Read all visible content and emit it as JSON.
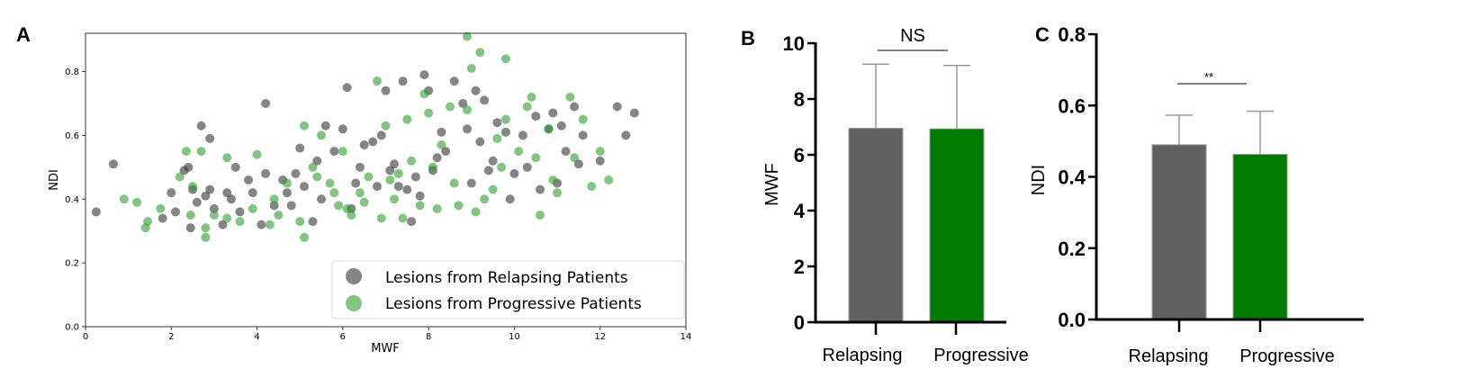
{
  "chart_data": [
    {
      "type": "scatter",
      "panel": "A",
      "xlabel": "MWF",
      "ylabel": "NDI",
      "xlim": [
        0,
        14
      ],
      "ylim": [
        0,
        0.92
      ],
      "xticks": [
        "0",
        "2",
        "4",
        "6",
        "8",
        "10",
        "12",
        "14"
      ],
      "xtick_values": [
        0,
        2,
        4,
        6,
        8,
        10,
        12,
        14
      ],
      "yticks": [
        "0.0",
        "0.2",
        "0.4",
        "0.6",
        "0.8"
      ],
      "ytick_values": [
        0,
        0.2,
        0.4,
        0.6,
        0.8
      ],
      "legend_position": "bottom-right",
      "series": [
        {
          "name": "Lesions from Relapsing Patients",
          "color": "#333333",
          "points": [
            [
              0.25,
              0.36
            ],
            [
              0.65,
              0.51
            ],
            [
              1.8,
              0.34
            ],
            [
              2.0,
              0.42
            ],
            [
              2.1,
              0.36
            ],
            [
              2.3,
              0.49
            ],
            [
              2.4,
              0.5
            ],
            [
              2.45,
              0.31
            ],
            [
              2.5,
              0.43
            ],
            [
              2.6,
              0.39
            ],
            [
              2.7,
              0.63
            ],
            [
              2.8,
              0.41
            ],
            [
              2.9,
              0.59
            ],
            [
              2.9,
              0.43
            ],
            [
              3.0,
              0.37
            ],
            [
              3.2,
              0.32
            ],
            [
              3.3,
              0.42
            ],
            [
              3.5,
              0.5
            ],
            [
              3.6,
              0.36
            ],
            [
              3.8,
              0.46
            ],
            [
              3.9,
              0.42
            ],
            [
              4.1,
              0.32
            ],
            [
              4.2,
              0.48
            ],
            [
              4.2,
              0.7
            ],
            [
              4.4,
              0.38
            ],
            [
              4.6,
              0.46
            ],
            [
              4.7,
              0.42
            ],
            [
              4.9,
              0.48
            ],
            [
              5.0,
              0.56
            ],
            [
              5.1,
              0.44
            ],
            [
              5.3,
              0.33
            ],
            [
              5.4,
              0.52
            ],
            [
              5.6,
              0.63
            ],
            [
              5.8,
              0.55
            ],
            [
              6.0,
              0.62
            ],
            [
              6.1,
              0.75
            ],
            [
              6.2,
              0.37
            ],
            [
              6.4,
              0.5
            ],
            [
              6.5,
              0.57
            ],
            [
              6.7,
              0.58
            ],
            [
              6.9,
              0.6
            ],
            [
              7.0,
              0.74
            ],
            [
              7.1,
              0.49
            ],
            [
              7.2,
              0.51
            ],
            [
              7.3,
              0.44
            ],
            [
              7.4,
              0.77
            ],
            [
              7.5,
              0.43
            ],
            [
              7.6,
              0.33
            ],
            [
              7.7,
              0.47
            ],
            [
              7.9,
              0.79
            ],
            [
              8.0,
              0.74
            ],
            [
              8.1,
              0.49
            ],
            [
              8.3,
              0.61
            ],
            [
              8.4,
              0.55
            ],
            [
              8.6,
              0.77
            ],
            [
              8.8,
              0.7
            ],
            [
              8.9,
              0.62
            ],
            [
              9.0,
              0.45
            ],
            [
              9.1,
              0.74
            ],
            [
              9.2,
              0.58
            ],
            [
              9.3,
              0.71
            ],
            [
              9.5,
              0.52
            ],
            [
              9.6,
              0.64
            ],
            [
              9.8,
              0.61
            ],
            [
              9.9,
              0.4
            ],
            [
              10.0,
              0.48
            ],
            [
              10.2,
              0.6
            ],
            [
              10.3,
              0.5
            ],
            [
              10.5,
              0.66
            ],
            [
              10.6,
              0.43
            ],
            [
              10.8,
              0.62
            ],
            [
              10.9,
              0.67
            ],
            [
              11.0,
              0.45
            ],
            [
              11.1,
              0.63
            ],
            [
              11.2,
              0.55
            ],
            [
              11.4,
              0.69
            ],
            [
              11.5,
              0.51
            ],
            [
              11.6,
              0.6
            ],
            [
              12.0,
              0.52
            ],
            [
              12.4,
              0.69
            ],
            [
              12.6,
              0.6
            ],
            [
              12.8,
              0.67
            ],
            [
              5.5,
              0.4
            ],
            [
              6.3,
              0.45
            ],
            [
              7.8,
              0.41
            ],
            [
              8.2,
              0.53
            ],
            [
              4.8,
              0.38
            ],
            [
              6.8,
              0.44
            ],
            [
              9.4,
              0.49
            ],
            [
              3.4,
              0.4
            ]
          ]
        },
        {
          "name": "Lesions from Progressive Patients",
          "color": "#2ca02c",
          "points": [
            [
              0.9,
              0.4
            ],
            [
              1.2,
              0.39
            ],
            [
              1.4,
              0.31
            ],
            [
              1.45,
              0.33
            ],
            [
              1.75,
              0.37
            ],
            [
              2.2,
              0.47
            ],
            [
              2.35,
              0.55
            ],
            [
              2.45,
              0.35
            ],
            [
              2.5,
              0.44
            ],
            [
              2.7,
              0.55
            ],
            [
              2.8,
              0.28
            ],
            [
              2.8,
              0.31
            ],
            [
              3.0,
              0.35
            ],
            [
              3.3,
              0.34
            ],
            [
              3.3,
              0.53
            ],
            [
              3.6,
              0.33
            ],
            [
              3.9,
              0.37
            ],
            [
              4.0,
              0.54
            ],
            [
              4.3,
              0.32
            ],
            [
              4.5,
              0.35
            ],
            [
              4.7,
              0.45
            ],
            [
              5.0,
              0.33
            ],
            [
              5.1,
              0.28
            ],
            [
              5.1,
              0.63
            ],
            [
              5.3,
              0.5
            ],
            [
              5.5,
              0.6
            ],
            [
              5.7,
              0.45
            ],
            [
              5.9,
              0.38
            ],
            [
              6.0,
              0.55
            ],
            [
              6.2,
              0.35
            ],
            [
              6.4,
              0.42
            ],
            [
              6.6,
              0.47
            ],
            [
              6.8,
              0.77
            ],
            [
              6.9,
              0.34
            ],
            [
              7.0,
              0.63
            ],
            [
              7.2,
              0.4
            ],
            [
              7.4,
              0.34
            ],
            [
              7.5,
              0.65
            ],
            [
              7.6,
              0.52
            ],
            [
              7.8,
              0.38
            ],
            [
              7.9,
              0.73
            ],
            [
              8.0,
              0.67
            ],
            [
              8.2,
              0.37
            ],
            [
              8.3,
              0.57
            ],
            [
              8.5,
              0.69
            ],
            [
              8.7,
              0.38
            ],
            [
              8.9,
              0.91
            ],
            [
              8.9,
              0.68
            ],
            [
              9.0,
              0.81
            ],
            [
              9.1,
              0.36
            ],
            [
              9.2,
              0.86
            ],
            [
              9.3,
              0.4
            ],
            [
              9.5,
              0.43
            ],
            [
              9.6,
              0.59
            ],
            [
              9.8,
              0.84
            ],
            [
              9.8,
              0.65
            ],
            [
              10.1,
              0.55
            ],
            [
              10.3,
              0.69
            ],
            [
              10.4,
              0.72
            ],
            [
              10.5,
              0.53
            ],
            [
              10.6,
              0.35
            ],
            [
              10.8,
              0.62
            ],
            [
              10.9,
              0.46
            ],
            [
              11.0,
              0.42
            ],
            [
              11.3,
              0.72
            ],
            [
              11.4,
              0.53
            ],
            [
              11.6,
              0.65
            ],
            [
              11.8,
              0.44
            ],
            [
              12.0,
              0.55
            ],
            [
              12.2,
              0.46
            ],
            [
              5.8,
              0.42
            ],
            [
              6.5,
              0.39
            ],
            [
              7.1,
              0.46
            ],
            [
              8.1,
              0.5
            ],
            [
              8.6,
              0.45
            ],
            [
              9.7,
              0.5
            ],
            [
              4.4,
              0.4
            ],
            [
              6.1,
              0.37
            ],
            [
              7.3,
              0.48
            ],
            [
              5.4,
              0.47
            ]
          ]
        }
      ]
    },
    {
      "type": "bar",
      "panel": "B",
      "ylabel": "MWF",
      "ylim": [
        0,
        10
      ],
      "yticks": [
        "0",
        "2",
        "4",
        "6",
        "8",
        "10"
      ],
      "ytick_values": [
        0,
        2,
        4,
        6,
        8,
        10
      ],
      "categories": [
        "Relapsing",
        "Progressive"
      ],
      "values": [
        6.95,
        6.93
      ],
      "error_upper": [
        9.25,
        9.2
      ],
      "colors": [
        "#606060",
        "#007a00"
      ],
      "significance": "NS"
    },
    {
      "type": "bar",
      "panel": "C",
      "ylabel": "NDI",
      "ylim": [
        0,
        0.8
      ],
      "yticks": [
        "0.0",
        "0.2",
        "0.4",
        "0.6",
        "0.8"
      ],
      "ytick_values": [
        0,
        0.2,
        0.4,
        0.6,
        0.8
      ],
      "categories": [
        "Relapsing",
        "Progressive"
      ],
      "values": [
        0.49,
        0.463
      ],
      "error_upper": [
        0.573,
        0.584
      ],
      "colors": [
        "#606060",
        "#007a00"
      ],
      "significance": "**"
    }
  ]
}
